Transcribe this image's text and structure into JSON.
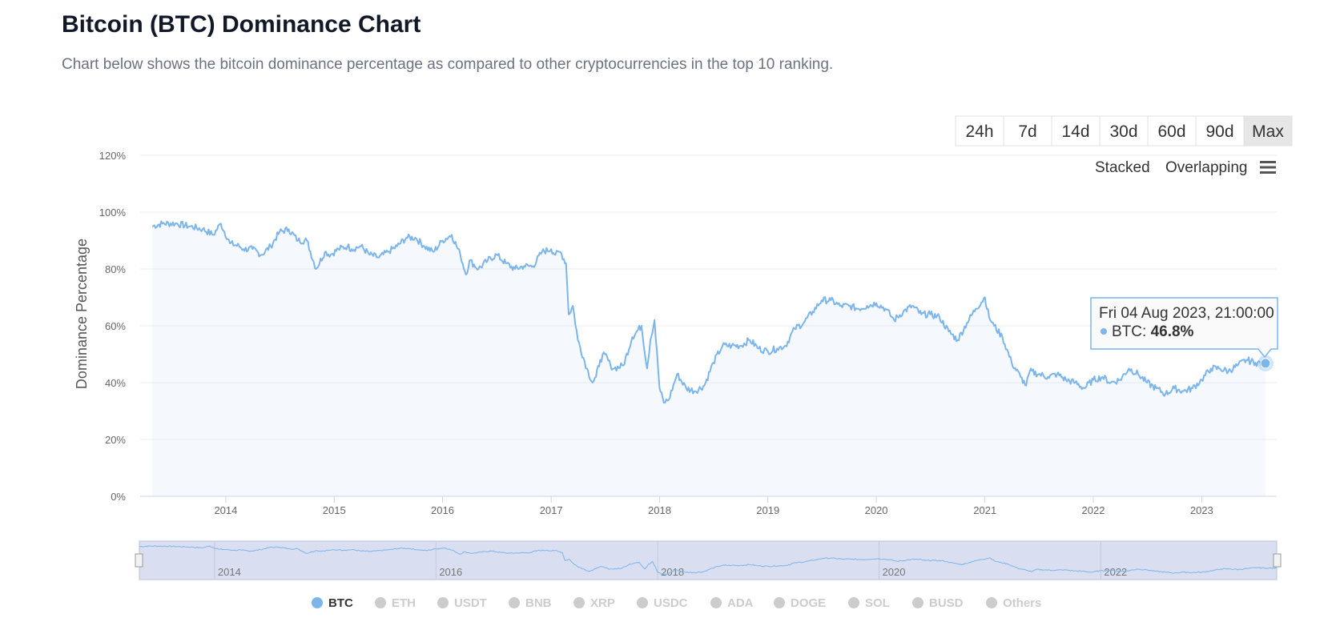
{
  "page": {
    "title": "Bitcoin (BTC) Dominance Chart",
    "subtitle": "Chart below shows the bitcoin dominance percentage as compared to other cryptocurrencies in the top 10 ranking."
  },
  "range_buttons": [
    {
      "label": "24h",
      "active": false
    },
    {
      "label": "7d",
      "active": false
    },
    {
      "label": "14d",
      "active": false
    },
    {
      "label": "30d",
      "active": false
    },
    {
      "label": "60d",
      "active": false
    },
    {
      "label": "90d",
      "active": false
    },
    {
      "label": "Max",
      "active": true
    }
  ],
  "view_toggle": {
    "stacked": "Stacked",
    "overlapping": "Overlapping",
    "menu_icon": "hamburger-menu-icon"
  },
  "colors": {
    "btc": "#7cb5ec",
    "inactive": "#cccccc",
    "navigator_mask": "#d9dff0"
  },
  "tooltip": {
    "date": "Fri 04 Aug 2023, 21:00:00",
    "series": "BTC",
    "value": "46.8%"
  },
  "navigator_labels": [
    "2014",
    "2016",
    "2018",
    "2020",
    "2022"
  ],
  "chart_data": {
    "type": "line",
    "title": "",
    "xlabel": "",
    "ylabel": "Dominance Percentage",
    "ylim": [
      0,
      120
    ],
    "xlim": [
      "2013-04-28",
      "2023-08-04"
    ],
    "y_ticks": [
      "0%",
      "20%",
      "40%",
      "60%",
      "80%",
      "100%",
      "120%"
    ],
    "x_ticks": [
      "2014",
      "2015",
      "2016",
      "2017",
      "2018",
      "2019",
      "2020",
      "2021",
      "2022",
      "2023"
    ],
    "grid": true,
    "legend_position": "bottom",
    "legend": [
      {
        "name": "BTC",
        "active": true
      },
      {
        "name": "ETH",
        "active": false
      },
      {
        "name": "USDT",
        "active": false
      },
      {
        "name": "BNB",
        "active": false
      },
      {
        "name": "XRP",
        "active": false
      },
      {
        "name": "USDC",
        "active": false
      },
      {
        "name": "ADA",
        "active": false
      },
      {
        "name": "DOGE",
        "active": false
      },
      {
        "name": "SOL",
        "active": false
      },
      {
        "name": "BUSD",
        "active": false
      },
      {
        "name": "Others",
        "active": false
      }
    ],
    "series": [
      {
        "name": "BTC",
        "x": [
          "2013-04-28",
          "2013-06-01",
          "2013-07-15",
          "2013-09-01",
          "2013-10-15",
          "2013-11-20",
          "2013-12-15",
          "2014-01-15",
          "2014-02-15",
          "2014-03-01",
          "2014-04-01",
          "2014-05-01",
          "2014-06-01",
          "2014-07-01",
          "2014-08-01",
          "2014-09-01",
          "2014-10-01",
          "2014-11-01",
          "2014-12-01",
          "2014-12-20",
          "2015-01-15",
          "2015-02-15",
          "2015-03-01",
          "2015-04-01",
          "2015-05-01",
          "2015-06-01",
          "2015-07-01",
          "2015-08-01",
          "2015-09-01",
          "2015-10-01",
          "2015-11-01",
          "2015-12-01",
          "2016-01-01",
          "2016-02-01",
          "2016-03-01",
          "2016-03-20",
          "2016-04-01",
          "2016-05-01",
          "2016-06-01",
          "2016-07-01",
          "2016-08-01",
          "2016-09-01",
          "2016-10-01",
          "2016-11-01",
          "2016-12-01",
          "2017-01-01",
          "2017-01-15",
          "2017-02-01",
          "2017-02-20",
          "2017-03-01",
          "2017-03-15",
          "2017-04-01",
          "2017-05-01",
          "2017-05-20",
          "2017-06-01",
          "2017-06-15",
          "2017-07-01",
          "2017-07-20",
          "2017-08-01",
          "2017-09-01",
          "2017-10-01",
          "2017-11-01",
          "2017-11-20",
          "2017-12-01",
          "2017-12-15",
          "2018-01-01",
          "2018-01-15",
          "2018-02-01",
          "2018-03-01",
          "2018-04-01",
          "2018-05-01",
          "2018-06-01",
          "2018-07-01",
          "2018-08-01",
          "2018-09-01",
          "2018-10-01",
          "2018-11-01",
          "2018-12-01",
          "2019-01-01",
          "2019-02-01",
          "2019-03-01",
          "2019-04-01",
          "2019-05-01",
          "2019-06-01",
          "2019-07-01",
          "2019-08-01",
          "2019-09-01",
          "2019-10-01",
          "2019-11-01",
          "2019-12-01",
          "2020-01-01",
          "2020-02-01",
          "2020-03-01",
          "2020-04-01",
          "2020-05-01",
          "2020-06-01",
          "2020-07-01",
          "2020-08-01",
          "2020-09-01",
          "2020-10-01",
          "2020-11-01",
          "2020-12-01",
          "2021-01-01",
          "2021-01-15",
          "2021-02-01",
          "2021-03-01",
          "2021-04-01",
          "2021-05-01",
          "2021-05-20",
          "2021-06-01",
          "2021-07-01",
          "2021-08-01",
          "2021-09-01",
          "2021-10-01",
          "2021-11-01",
          "2021-12-01",
          "2022-01-01",
          "2022-02-01",
          "2022-03-01",
          "2022-04-01",
          "2022-05-01",
          "2022-06-01",
          "2022-07-01",
          "2022-08-01",
          "2022-09-01",
          "2022-10-01",
          "2022-11-01",
          "2022-12-01",
          "2023-01-01",
          "2023-02-01",
          "2023-03-01",
          "2023-04-01",
          "2023-05-01",
          "2023-06-01",
          "2023-07-01",
          "2023-08-04"
        ],
        "values": [
          95,
          96,
          96,
          95,
          94,
          92,
          96,
          89,
          88,
          87,
          87,
          85,
          88,
          93,
          94,
          90,
          90,
          80,
          86,
          85,
          87,
          88,
          87,
          88,
          85,
          84,
          86,
          88,
          91,
          91,
          88,
          86,
          90,
          92,
          85,
          78,
          83,
          80,
          83,
          85,
          82,
          80,
          81,
          81,
          86,
          87,
          85,
          86,
          82,
          64,
          67,
          55,
          45,
          40,
          42,
          48,
          50,
          46,
          45,
          46,
          56,
          60,
          45,
          55,
          62,
          38,
          33,
          34,
          43,
          38,
          37,
          39,
          47,
          53,
          53,
          53,
          55,
          52,
          51,
          52,
          53,
          59,
          61,
          65,
          69,
          69,
          67,
          67,
          66,
          67,
          68,
          66,
          62,
          65,
          67,
          64,
          64,
          63,
          58,
          55,
          61,
          66,
          70,
          63,
          60,
          56,
          47,
          42,
          39,
          44,
          43,
          42,
          43,
          41,
          40,
          38,
          41,
          42,
          40,
          41,
          45,
          43,
          40,
          38,
          36,
          38,
          37,
          38,
          41,
          45,
          45,
          44,
          46,
          48,
          47,
          46.8
        ]
      }
    ]
  }
}
